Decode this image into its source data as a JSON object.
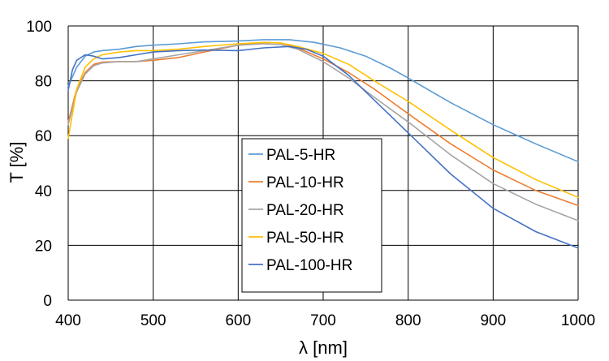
{
  "chart_data": {
    "type": "line",
    "xlabel": "λ [nm]",
    "ylabel": "T [%]",
    "xlim": [
      400,
      1000
    ],
    "ylim": [
      0,
      100
    ],
    "xticks": [
      400,
      500,
      600,
      700,
      800,
      900,
      1000
    ],
    "yticks": [
      0,
      20,
      40,
      60,
      80,
      100
    ],
    "grid": true,
    "legend": "center-left",
    "series": [
      {
        "name": "PAL-5-HR",
        "color": "#5b9bd5",
        "x": [
          400,
          410,
          420,
          430,
          440,
          460,
          480,
          500,
          530,
          560,
          600,
          630,
          660,
          690,
          720,
          750,
          780,
          800,
          850,
          900,
          950,
          1000
        ],
        "y": [
          78,
          85,
          89,
          90.5,
          91,
          91.5,
          92.5,
          93,
          93.5,
          94.2,
          94.5,
          95,
          95,
          94,
          92,
          89,
          84.5,
          81,
          72,
          64,
          57,
          50.5
        ]
      },
      {
        "name": "PAL-10-HR",
        "color": "#ed7d31",
        "x": [
          400,
          410,
          420,
          430,
          440,
          460,
          480,
          500,
          530,
          560,
          600,
          630,
          650,
          670,
          700,
          730,
          760,
          800,
          850,
          900,
          950,
          1000
        ],
        "y": [
          65,
          77,
          83,
          86,
          86.8,
          87,
          87,
          87.5,
          88.5,
          90.5,
          93,
          94,
          93.8,
          92,
          88,
          83,
          77,
          68,
          57,
          47.5,
          40,
          34.5
        ]
      },
      {
        "name": "PAL-20-HR",
        "color": "#a5a5a5",
        "x": [
          400,
          410,
          420,
          430,
          440,
          460,
          480,
          500,
          530,
          560,
          600,
          630,
          650,
          670,
          700,
          730,
          760,
          800,
          850,
          900,
          950,
          1000
        ],
        "y": [
          64,
          76,
          82.5,
          85.5,
          86.5,
          87,
          87,
          88,
          89.5,
          91,
          93,
          93.5,
          93.2,
          91.5,
          87,
          81,
          74,
          65,
          53,
          42.5,
          35,
          29
        ]
      },
      {
        "name": "PAL-50-HR",
        "color": "#ffc000",
        "x": [
          400,
          410,
          420,
          430,
          440,
          460,
          480,
          500,
          530,
          560,
          600,
          630,
          650,
          670,
          700,
          730,
          760,
          800,
          850,
          900,
          950,
          1000
        ],
        "y": [
          59,
          77,
          85,
          88,
          89.5,
          90.5,
          91,
          91,
          91.5,
          92.5,
          93.5,
          94,
          93.8,
          92.5,
          90,
          86,
          80,
          72.5,
          62,
          52,
          44,
          37.5
        ]
      },
      {
        "name": "PAL-100-HR",
        "color": "#4472c4",
        "x": [
          400,
          405,
          410,
          420,
          430,
          440,
          460,
          480,
          500,
          530,
          560,
          600,
          630,
          660,
          680,
          700,
          730,
          760,
          800,
          850,
          900,
          950,
          1000
        ],
        "y": [
          76.5,
          84,
          87.5,
          89.5,
          89,
          88,
          88.5,
          89.5,
          90.5,
          91,
          91.2,
          91,
          92,
          92.5,
          91.5,
          89,
          82,
          73,
          61,
          46,
          33.5,
          25,
          19
        ]
      }
    ]
  }
}
